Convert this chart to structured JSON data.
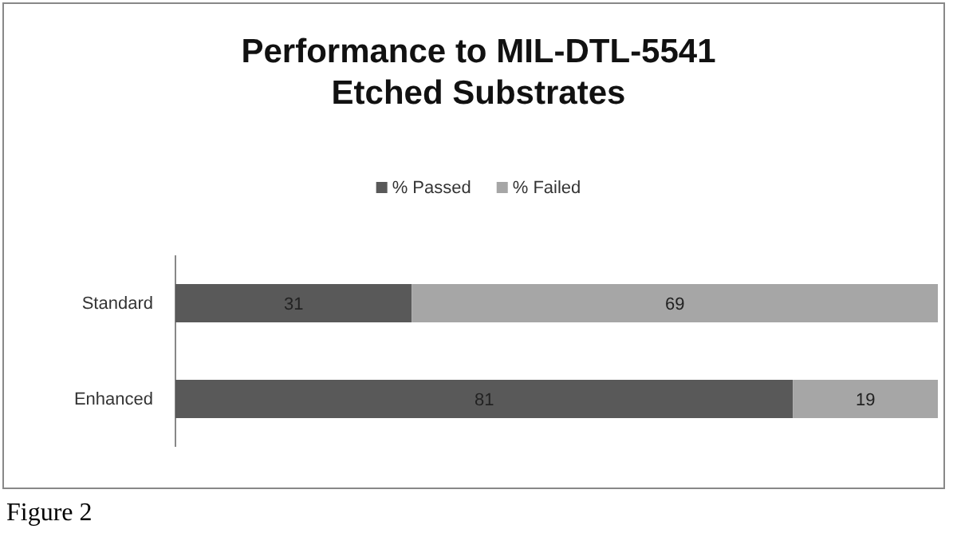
{
  "chart_data": {
    "type": "bar",
    "orientation": "horizontal",
    "stacked": true,
    "title": "Performance to MIL-DTL-5541\nEtched Substrates",
    "categories": [
      "Standard",
      "Enhanced"
    ],
    "series": [
      {
        "name": "% Passed",
        "color": "#595959",
        "values": [
          31,
          81
        ]
      },
      {
        "name": "% Failed",
        "color": "#a6a6a6",
        "values": [
          69,
          19
        ]
      }
    ],
    "xlim": [
      0,
      100
    ],
    "tick_labels": "y",
    "data_labels": true,
    "legend": "top",
    "annotations": [
      "Figure 2"
    ]
  }
}
